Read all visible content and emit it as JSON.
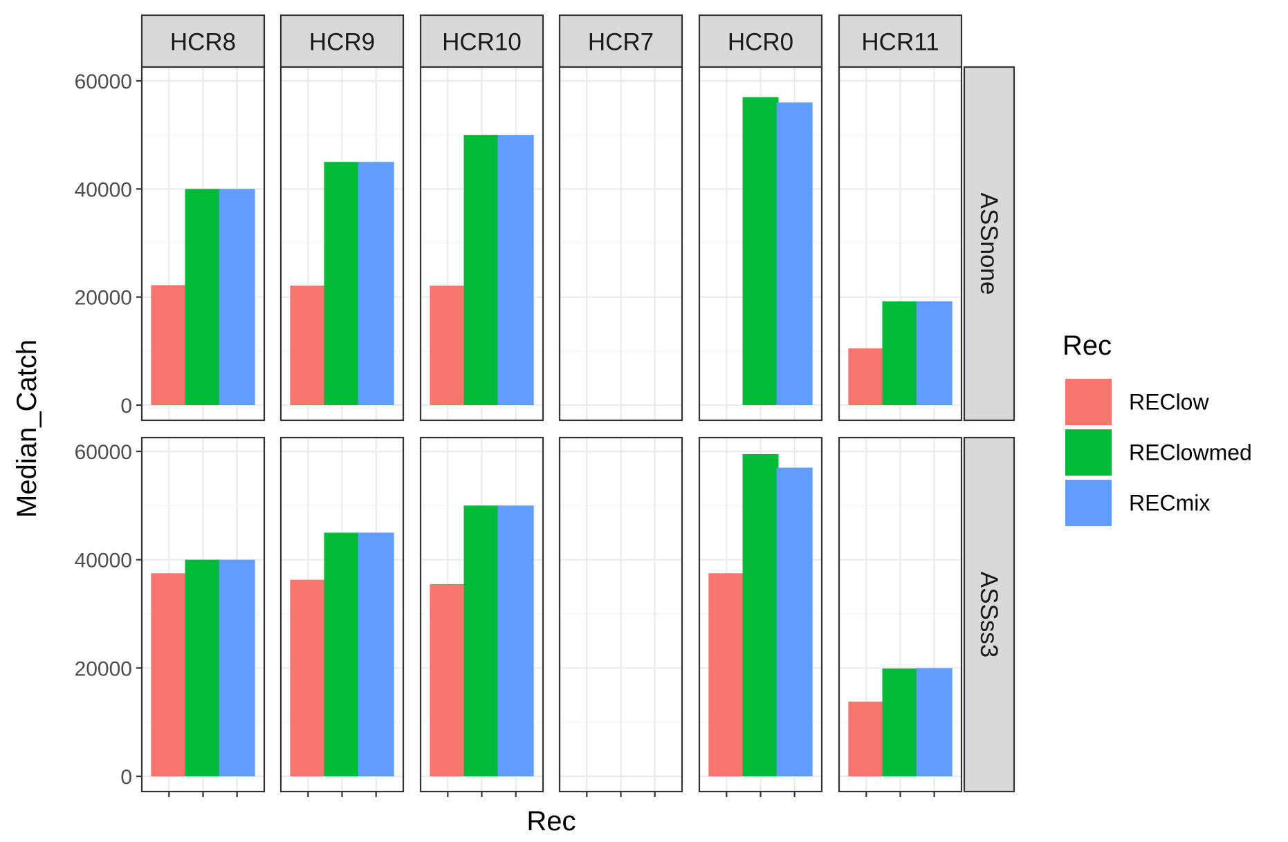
{
  "chart_data": {
    "type": "bar",
    "title": "",
    "xlabel": "Rec",
    "ylabel": "Median_Catch",
    "ylim": [
      0,
      60000
    ],
    "yticks": [
      0,
      20000,
      40000,
      60000
    ],
    "ytick_labels": [
      "0",
      "20000",
      "40000",
      "60000"
    ],
    "grid": true,
    "legend_position": "right",
    "legend": {
      "title": "Rec",
      "entries": [
        "REClow",
        "REClowmed",
        "RECmix"
      ]
    },
    "series_colors": {
      "REClow": "#F8766D",
      "REClowmed": "#00BA38",
      "RECmix": "#619CFF"
    },
    "categories": [
      "REClow",
      "REClowmed",
      "RECmix"
    ],
    "facet_columns": [
      "HCR8",
      "HCR9",
      "HCR10",
      "HCR7",
      "HCR0",
      "HCR11"
    ],
    "facet_rows": [
      "ASSnone",
      "ASSss3"
    ],
    "panels": [
      {
        "column": "HCR8",
        "row": "ASSnone",
        "values": [
          22200,
          40000,
          40000
        ]
      },
      {
        "column": "HCR9",
        "row": "ASSnone",
        "values": [
          22100,
          45000,
          45000
        ]
      },
      {
        "column": "HCR10",
        "row": "ASSnone",
        "values": [
          22100,
          50000,
          50000
        ]
      },
      {
        "column": "HCR7",
        "row": "ASSnone",
        "values": [
          null,
          null,
          null
        ]
      },
      {
        "column": "HCR0",
        "row": "ASSnone",
        "values": [
          null,
          57000,
          56000
        ]
      },
      {
        "column": "HCR11",
        "row": "ASSnone",
        "values": [
          10500,
          19200,
          19200
        ]
      },
      {
        "column": "HCR8",
        "row": "ASSss3",
        "values": [
          37500,
          40000,
          40000
        ]
      },
      {
        "column": "HCR9",
        "row": "ASSss3",
        "values": [
          36300,
          45000,
          45000
        ]
      },
      {
        "column": "HCR10",
        "row": "ASSss3",
        "values": [
          35500,
          50000,
          50000
        ]
      },
      {
        "column": "HCR7",
        "row": "ASSss3",
        "values": [
          null,
          null,
          null
        ]
      },
      {
        "column": "HCR0",
        "row": "ASSss3",
        "values": [
          37500,
          59500,
          57000
        ]
      },
      {
        "column": "HCR11",
        "row": "ASSss3",
        "values": [
          13800,
          19900,
          20000
        ]
      }
    ]
  }
}
